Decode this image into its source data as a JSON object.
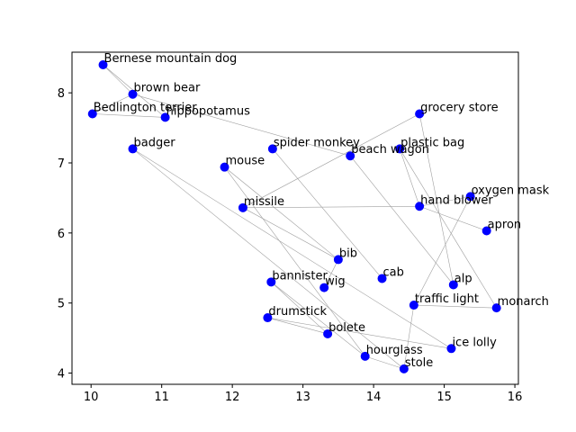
{
  "chart_data": {
    "type": "scatter",
    "title": "",
    "xlabel": "",
    "ylabel": "",
    "xlim": [
      9.73,
      16.05
    ],
    "ylim": [
      3.84,
      8.58
    ],
    "xticks": [
      10,
      11,
      12,
      13,
      14,
      15,
      16
    ],
    "yticks": [
      4,
      5,
      6,
      7,
      8
    ],
    "grid": false,
    "point_color": "#0000ff",
    "line_color": "#a0a0a0",
    "points": [
      {
        "label": "Bernese mountain dog",
        "x": 10.17,
        "y": 8.4
      },
      {
        "label": "brown bear",
        "x": 10.59,
        "y": 7.98
      },
      {
        "label": "Bedlington terrier",
        "x": 10.02,
        "y": 7.7
      },
      {
        "label": "hippopotamus",
        "x": 11.05,
        "y": 7.65
      },
      {
        "label": "badger",
        "x": 10.59,
        "y": 7.2
      },
      {
        "label": "spider monkey",
        "x": 12.57,
        "y": 7.2
      },
      {
        "label": "mouse",
        "x": 11.89,
        "y": 6.94
      },
      {
        "label": "grocery store",
        "x": 14.65,
        "y": 7.7
      },
      {
        "label": "plastic bag",
        "x": 14.37,
        "y": 7.2
      },
      {
        "label": "beach wagon",
        "x": 13.67,
        "y": 7.1
      },
      {
        "label": "missile",
        "x": 12.15,
        "y": 6.36
      },
      {
        "label": "hand blower",
        "x": 14.65,
        "y": 6.38
      },
      {
        "label": "oxygen mask",
        "x": 15.37,
        "y": 6.52
      },
      {
        "label": "apron",
        "x": 15.6,
        "y": 6.03
      },
      {
        "label": "bib",
        "x": 13.5,
        "y": 5.62
      },
      {
        "label": "cab",
        "x": 14.12,
        "y": 5.35
      },
      {
        "label": "alp",
        "x": 15.13,
        "y": 5.26
      },
      {
        "label": "bannister",
        "x": 12.55,
        "y": 5.3
      },
      {
        "label": "wig",
        "x": 13.3,
        "y": 5.22
      },
      {
        "label": "traffic light",
        "x": 14.57,
        "y": 4.97
      },
      {
        "label": "monarch",
        "x": 15.74,
        "y": 4.93
      },
      {
        "label": "drumstick",
        "x": 12.5,
        "y": 4.79
      },
      {
        "label": "bolete",
        "x": 13.35,
        "y": 4.56
      },
      {
        "label": "ice lolly",
        "x": 15.1,
        "y": 4.35
      },
      {
        "label": "hourglass",
        "x": 13.88,
        "y": 4.24
      },
      {
        "label": "stole",
        "x": 14.43,
        "y": 4.06
      }
    ],
    "edges": [
      [
        "Bernese mountain dog",
        "brown bear"
      ],
      [
        "Bernese mountain dog",
        "hippopotamus"
      ],
      [
        "brown bear",
        "Bedlington terrier"
      ],
      [
        "brown bear",
        "beach wagon"
      ],
      [
        "Bedlington terrier",
        "hippopotamus"
      ],
      [
        "badger",
        "ice lolly"
      ],
      [
        "badger",
        "stole"
      ],
      [
        "spider monkey",
        "cab"
      ],
      [
        "mouse",
        "bib"
      ],
      [
        "mouse",
        "hourglass"
      ],
      [
        "grocery store",
        "missile"
      ],
      [
        "grocery store",
        "alp"
      ],
      [
        "plastic bag",
        "monarch"
      ],
      [
        "plastic bag",
        "hand blower"
      ],
      [
        "beach wagon",
        "alp"
      ],
      [
        "missile",
        "hand blower"
      ],
      [
        "hand blower",
        "apron"
      ],
      [
        "oxygen mask",
        "traffic light"
      ],
      [
        "oxygen mask",
        "hand blower"
      ],
      [
        "bib",
        "wig"
      ],
      [
        "bib",
        "missile"
      ],
      [
        "traffic light",
        "monarch"
      ],
      [
        "traffic light",
        "stole"
      ],
      [
        "bannister",
        "hourglass"
      ],
      [
        "bannister",
        "bolete"
      ],
      [
        "drumstick",
        "bolete"
      ],
      [
        "drumstick",
        "ice lolly"
      ],
      [
        "hourglass",
        "stole"
      ]
    ]
  }
}
